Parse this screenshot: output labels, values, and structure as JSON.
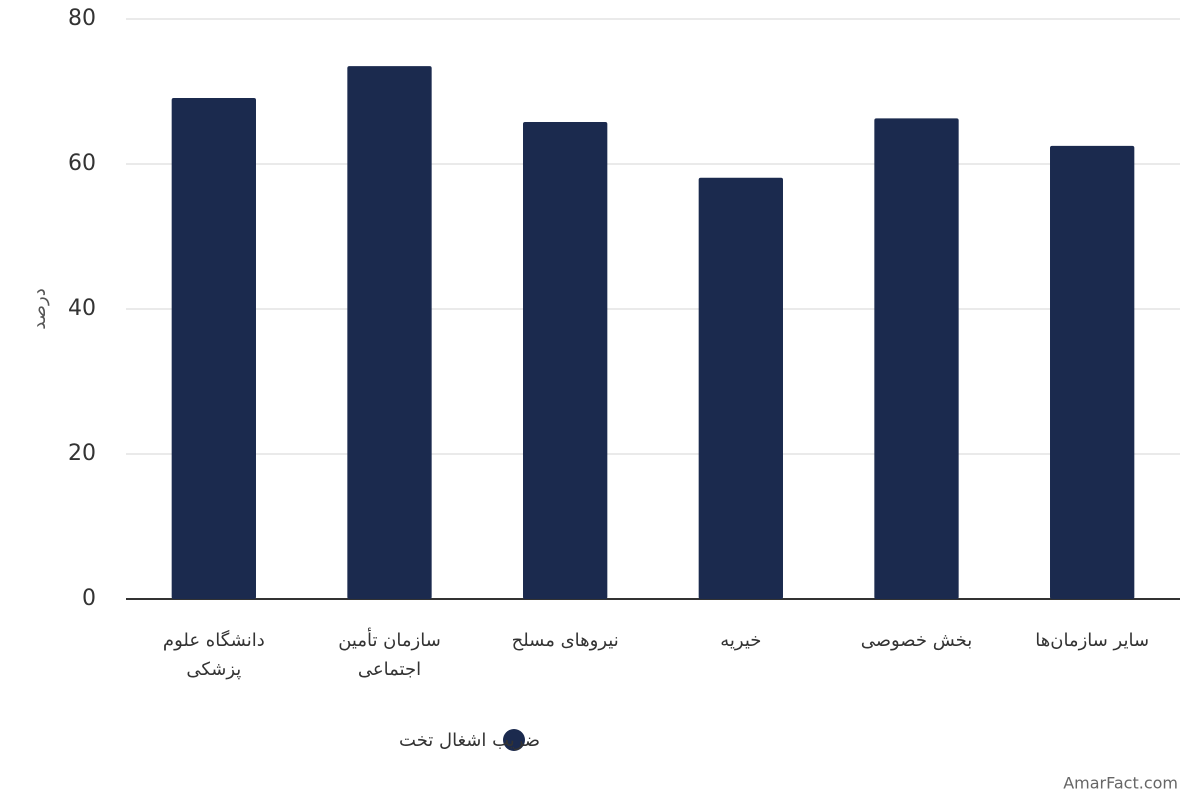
{
  "chart_data": {
    "type": "bar",
    "y_label": "درصد",
    "categories": [
      "دانشگاه علوم پزشکی",
      "سازمان تأمین اجتماعی",
      "نیروهای مسلح",
      "خیریه",
      "بخش خصوصی",
      "سایر سازمان‌ها"
    ],
    "series": [
      {
        "name": "ضریب اشغال تخت",
        "color": "#1b2a4e",
        "values": [
          69.1,
          73.5,
          65.8,
          58.1,
          66.3,
          62.5
        ]
      }
    ],
    "ylim": [
      0,
      80
    ],
    "yticks": [
      0,
      20,
      40,
      60,
      80
    ],
    "grid": true,
    "legend": "bottom",
    "watermark": "AmarFact.com"
  }
}
